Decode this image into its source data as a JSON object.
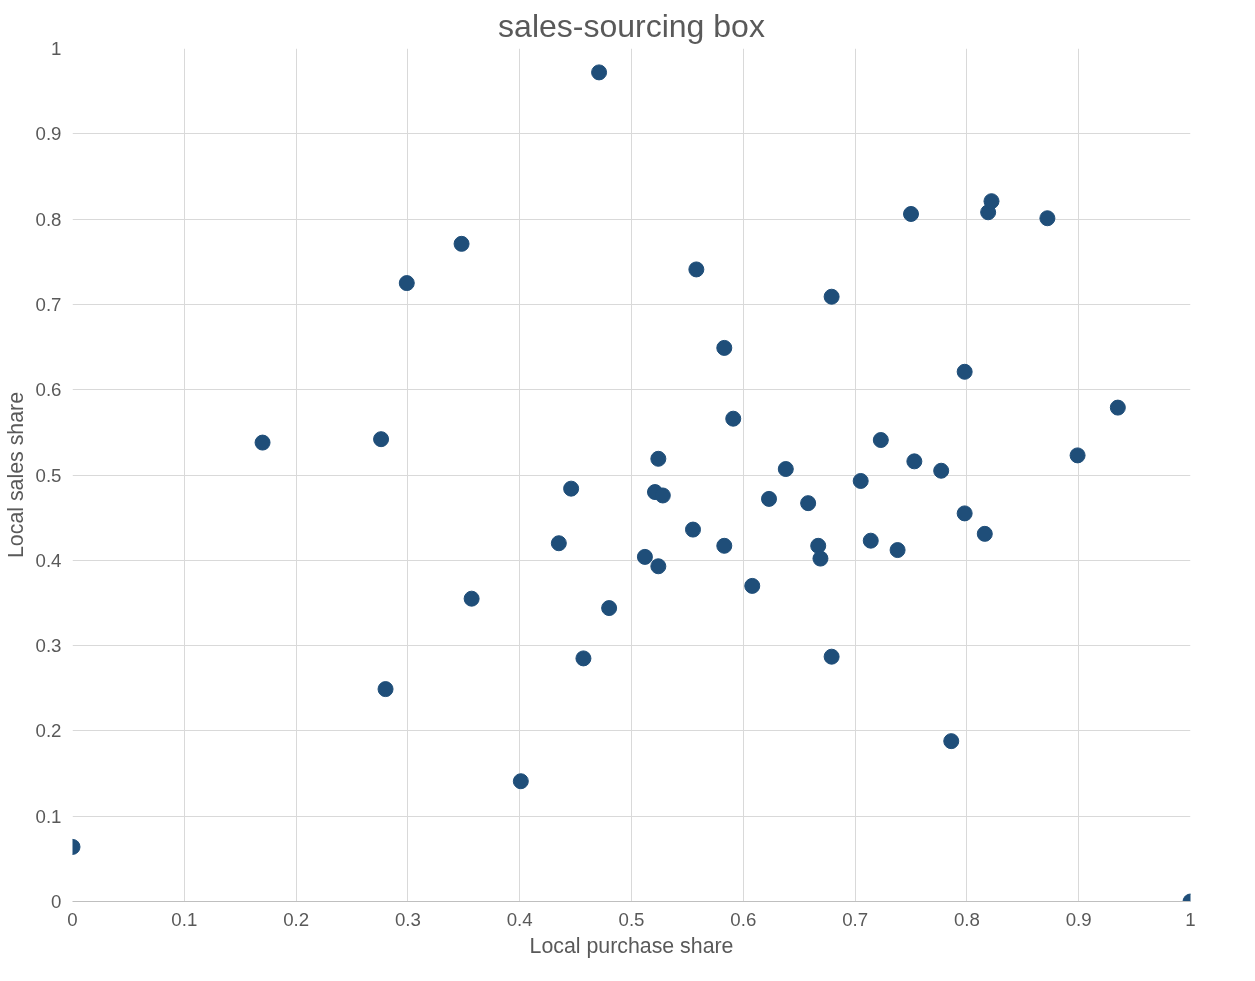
{
  "chart_data": {
    "type": "scatter",
    "title": "sales-sourcing box",
    "xlabel": "Local purchase share",
    "ylabel": "Local sales share",
    "xlim": [
      0,
      1
    ],
    "ylim": [
      0,
      1
    ],
    "xticks": [
      0,
      0.1,
      0.2,
      0.3,
      0.4,
      0.5,
      0.6,
      0.7,
      0.8,
      0.9,
      1
    ],
    "yticks": [
      0,
      0.1,
      0.2,
      0.3,
      0.4,
      0.5,
      0.6,
      0.7,
      0.8,
      0.9,
      1
    ],
    "grid": true,
    "marker": "circle",
    "series": [
      {
        "color": "#1f4e79",
        "x": [
          0,
          0.471,
          0.17,
          0.276,
          0.299,
          0.348,
          0.28,
          0.357,
          0.401,
          0.435,
          0.446,
          0.457,
          0.48,
          0.512,
          0.521,
          0.524,
          0.528,
          0.524,
          0.555,
          0.558,
          0.583,
          0.583,
          0.591,
          0.608,
          0.623,
          0.638,
          0.658,
          0.667,
          0.669,
          0.679,
          0.679,
          0.705,
          0.714,
          0.723,
          0.738,
          0.75,
          0.753,
          0.777,
          0.786,
          0.798,
          0.798,
          0.816,
          0.819,
          0.822,
          0.872,
          0.899,
          0.935,
          1
        ],
        "values": [
          0.064,
          0.972,
          0.538,
          0.542,
          0.725,
          0.771,
          0.249,
          0.355,
          0.141,
          0.42,
          0.484,
          0.285,
          0.344,
          0.404,
          0.48,
          0.519,
          0.476,
          0.393,
          0.436,
          0.741,
          0.649,
          0.417,
          0.566,
          0.37,
          0.472,
          0.507,
          0.467,
          0.417,
          0.402,
          0.709,
          0.287,
          0.493,
          0.423,
          0.541,
          0.412,
          0.806,
          0.516,
          0.505,
          0.188,
          0.621,
          0.455,
          0.431,
          0.808,
          0.821,
          0.801,
          0.523,
          0.579,
          0
        ]
      }
    ]
  }
}
